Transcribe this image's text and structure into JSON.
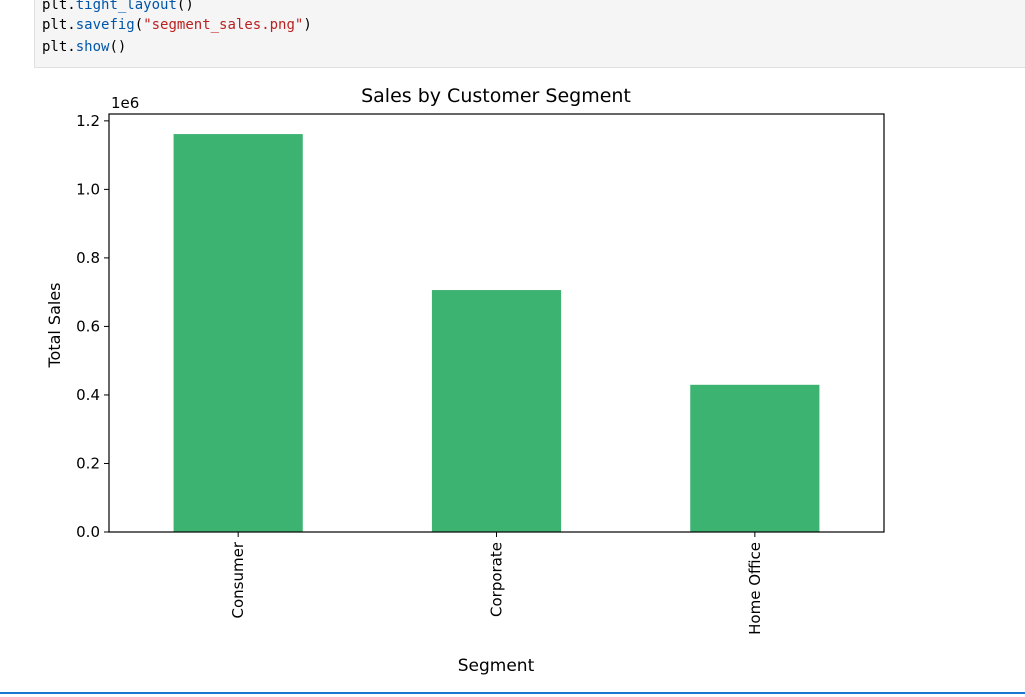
{
  "notebook": {
    "code_lines": [
      [
        {
          "t": "plt",
          "c": "plain"
        },
        {
          "t": ".",
          "c": "op"
        },
        {
          "t": "tight_layout",
          "c": "fn"
        },
        {
          "t": "()",
          "c": "op"
        }
      ],
      [
        {
          "t": "plt",
          "c": "plain"
        },
        {
          "t": ".",
          "c": "op"
        },
        {
          "t": "savefig",
          "c": "fn"
        },
        {
          "t": "(",
          "c": "op"
        },
        {
          "t": "\"segment_sales.png\"",
          "c": "str"
        },
        {
          "t": ")",
          "c": "op"
        }
      ],
      [
        {
          "t": "plt",
          "c": "plain"
        },
        {
          "t": ".",
          "c": "op"
        },
        {
          "t": "show",
          "c": "fn"
        },
        {
          "t": "()",
          "c": "op"
        }
      ]
    ]
  },
  "colors": {
    "bar": "#3cb371",
    "axes": "#000000",
    "code_background": "#f5f5f5",
    "cell_border": "#1976d2"
  },
  "chart_data": {
    "type": "bar",
    "title": "Sales by Customer Segment",
    "xlabel": "Segment",
    "ylabel": "Total Sales",
    "offset_label": "1e6",
    "categories": [
      "Consumer",
      "Corporate",
      "Home Office"
    ],
    "values": [
      1161401,
      706146,
      429653
    ],
    "ylim": [
      0,
      1220000.0
    ],
    "yticks": [
      0,
      200000,
      400000,
      600000,
      800000,
      1000000,
      1200000
    ],
    "ytick_labels": [
      "0.0",
      "0.2",
      "0.4",
      "0.6",
      "0.8",
      "1.0",
      "1.2"
    ],
    "grid": false,
    "legend": "none"
  }
}
